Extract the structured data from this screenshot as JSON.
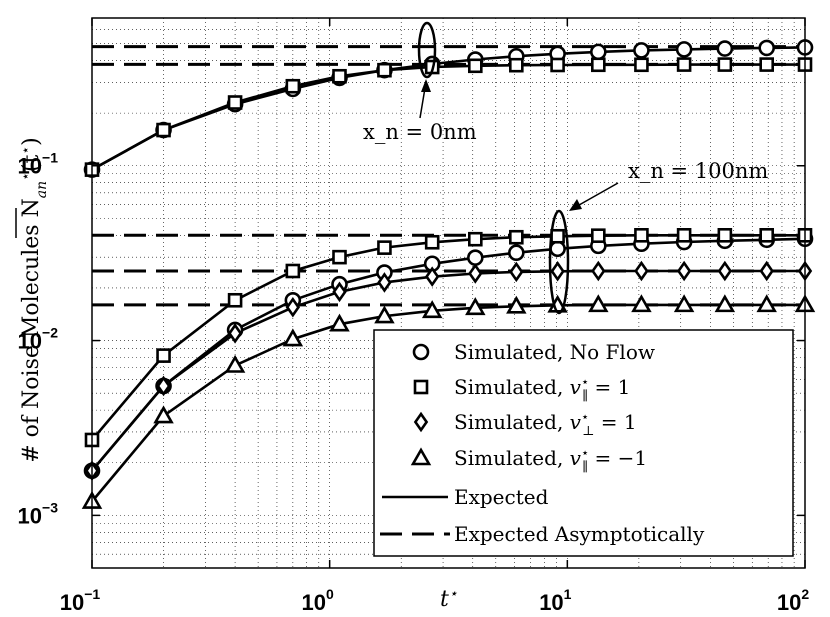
{
  "chart_data": {
    "type": "line",
    "xscale": "log",
    "yscale": "log",
    "xlim": [
      0.1,
      100
    ],
    "ylim": [
      0.0005,
      0.7
    ],
    "xlabel": "t*",
    "ylabel": "# of Noise Molecules N̄*_{a n}(t*)",
    "x_ticks": [
      {
        "base": "10",
        "exp": "−1"
      },
      {
        "base": "10",
        "exp": "0"
      },
      {
        "base": "10",
        "exp": "1"
      },
      {
        "base": "10",
        "exp": "2"
      }
    ],
    "y_ticks": [
      {
        "base": "10",
        "exp": "−3",
        "value": 0.001
      },
      {
        "base": "10",
        "exp": "−2",
        "value": 0.01
      },
      {
        "base": "10",
        "exp": "−1",
        "value": 0.1
      }
    ],
    "annotations": [
      {
        "text": "x_n = 0nm",
        "x": 2.6,
        "y": 0.42
      },
      {
        "text": "x_n = 100nm",
        "x": 9.3,
        "y": 0.026
      }
    ],
    "asymptotes": [
      {
        "name": "xn0-circle",
        "y": 0.48
      },
      {
        "name": "xn0-square",
        "y": 0.38
      },
      {
        "name": "xn100-upper",
        "y": 0.04
      },
      {
        "name": "xn100-middle",
        "y": 0.025
      },
      {
        "name": "xn100-lower",
        "y": 0.016
      }
    ],
    "series": [
      {
        "name": "Simulated, No Flow",
        "marker": "circle",
        "group": "xn = 0nm",
        "x": [
          0.1,
          0.2,
          0.4,
          0.7,
          1.1,
          1.7,
          2.7,
          4.1,
          6.1,
          9.1,
          13.5,
          20.5,
          31,
          46,
          69,
          100
        ],
        "y": [
          0.095,
          0.16,
          0.225,
          0.275,
          0.318,
          0.352,
          0.382,
          0.405,
          0.423,
          0.437,
          0.448,
          0.457,
          0.463,
          0.468,
          0.472,
          0.475
        ]
      },
      {
        "name": "Simulated, v∥* = 1",
        "marker": "square",
        "group": "xn = 0nm",
        "x": [
          0.1,
          0.2,
          0.4,
          0.7,
          1.1,
          1.7,
          2.7,
          4.1,
          6.1,
          9.1,
          13.5,
          20.5,
          31,
          46,
          69,
          100
        ],
        "y": [
          0.095,
          0.16,
          0.23,
          0.285,
          0.325,
          0.352,
          0.367,
          0.373,
          0.376,
          0.377,
          0.378,
          0.378,
          0.379,
          0.379,
          0.379,
          0.379
        ]
      },
      {
        "name": "Simulated, No Flow",
        "marker": "circle",
        "group": "xn = 100nm",
        "x": [
          0.1,
          0.2,
          0.4,
          0.7,
          1.1,
          1.7,
          2.7,
          4.1,
          6.1,
          9.1,
          13.5,
          20.5,
          31,
          46,
          69,
          100
        ],
        "y": [
          0.0018,
          0.0055,
          0.0115,
          0.017,
          0.021,
          0.0245,
          0.0275,
          0.0298,
          0.0318,
          0.0335,
          0.0348,
          0.0358,
          0.0366,
          0.0372,
          0.0377,
          0.0382
        ]
      },
      {
        "name": "Simulated, v∥* = 1",
        "marker": "square",
        "group": "xn = 100nm",
        "x": [
          0.1,
          0.2,
          0.4,
          0.7,
          1.1,
          1.7,
          2.7,
          4.1,
          6.1,
          9.1,
          13.5,
          20.5,
          31,
          46,
          69,
          100
        ],
        "y": [
          0.0027,
          0.0082,
          0.017,
          0.025,
          0.03,
          0.034,
          0.0365,
          0.038,
          0.039,
          0.0395,
          0.0398,
          0.04,
          0.04,
          0.04,
          0.04,
          0.04
        ]
      },
      {
        "name": "Simulated, v⊥* = 1",
        "marker": "diamond",
        "group": "xn = 100nm",
        "x": [
          0.1,
          0.2,
          0.4,
          0.7,
          1.1,
          1.7,
          2.7,
          4.1,
          6.1,
          9.1,
          13.5,
          20.5,
          31,
          46,
          69,
          100
        ],
        "y": [
          0.0018,
          0.0055,
          0.011,
          0.0155,
          0.019,
          0.0215,
          0.0232,
          0.0242,
          0.0247,
          0.0249,
          0.025,
          0.025,
          0.025,
          0.025,
          0.025,
          0.025
        ]
      },
      {
        "name": "Simulated, v∥* = −1",
        "marker": "triangle",
        "group": "xn = 100nm",
        "x": [
          0.1,
          0.2,
          0.4,
          0.7,
          1.1,
          1.7,
          2.7,
          4.1,
          6.1,
          9.1,
          13.5,
          20.5,
          31,
          46,
          69,
          100
        ],
        "y": [
          0.0012,
          0.0037,
          0.0072,
          0.0102,
          0.0124,
          0.0138,
          0.0148,
          0.0154,
          0.0157,
          0.0159,
          0.016,
          0.016,
          0.016,
          0.016,
          0.016,
          0.016
        ]
      }
    ],
    "legend": {
      "position": "bottom-right",
      "entries": [
        {
          "prefix": "Simulated, No Flow",
          "symbol": "",
          "sub": "",
          "suffix": "",
          "marker": "circle"
        },
        {
          "prefix": "Simulated, ",
          "symbol": "v",
          "sub": "∥",
          "suffix": " = 1",
          "marker": "square"
        },
        {
          "prefix": "Simulated, ",
          "symbol": "v",
          "sub": "⊥",
          "suffix": " = 1",
          "marker": "diamond"
        },
        {
          "prefix": "Simulated, ",
          "symbol": "v",
          "sub": "∥",
          "suffix": " = −1",
          "marker": "triangle"
        },
        {
          "prefix": "Expected",
          "symbol": "",
          "sub": "",
          "suffix": "",
          "marker": "solid-line"
        },
        {
          "prefix": "Expected Asymptotically",
          "symbol": "",
          "sub": "",
          "suffix": "",
          "marker": "dashed-line"
        }
      ]
    }
  }
}
